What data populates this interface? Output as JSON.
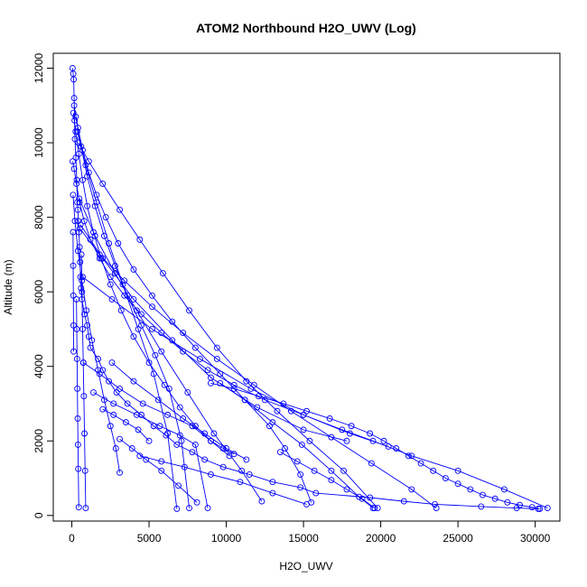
{
  "chart_data": {
    "type": "line",
    "title": "ATOM2 Northbound H2O_UWV (Log)",
    "xlabel": "H2O_UWV",
    "ylabel": "Altitude (m)",
    "xlim": [
      -1200,
      31600
    ],
    "ylim": [
      -150,
      12400
    ],
    "xticks": [
      0,
      5000,
      10000,
      15000,
      20000,
      25000,
      30000
    ],
    "yticks": [
      0,
      2000,
      4000,
      6000,
      8000,
      10000,
      12000
    ],
    "xtick_labels": [
      "0",
      "5000",
      "10000",
      "15000",
      "20000",
      "25000",
      "30000"
    ],
    "ytick_labels": [
      "0",
      "2000",
      "4000",
      "6000",
      "8000",
      "10000",
      "12000"
    ],
    "grid": false,
    "legend": "none",
    "marker": "open-circle",
    "colors": {
      "series": "#0000ff",
      "axis": "#000000"
    },
    "series": [
      {
        "x": [
          50,
          90,
          120,
          150,
          180,
          200,
          260,
          320,
          360,
          390,
          420,
          460,
          500,
          540,
          560,
          600,
          650,
          820,
          1000,
          1100,
          1200,
          1700,
          2000,
          2400,
          2900,
          3600,
          4500,
          5300,
          6100,
          6800,
          7800,
          8600,
          9800,
          11500,
          13000,
          14800,
          15800,
          19300,
          21500,
          23500,
          26500,
          28800,
          30200
        ],
        "y": [
          12000,
          11850,
          11700,
          11200,
          10600,
          10100,
          9600,
          9000,
          8400,
          8200,
          7900,
          7600,
          7200,
          6800,
          6400,
          6100,
          5800,
          5400,
          5100,
          4800,
          4500,
          4200,
          3900,
          3600,
          3300,
          3000,
          2700,
          2400,
          2150,
          1900,
          1700,
          1500,
          1300,
          1100,
          900,
          750,
          600,
          480,
          380,
          300,
          240,
          200,
          180
        ]
      },
      {
        "x": [
          60,
          150,
          300,
          500,
          800,
          1200,
          1800,
          2500,
          3400,
          4500,
          5800,
          7200,
          8800,
          10500,
          12500,
          15000,
          17500,
          19500,
          22000,
          25000,
          28000,
          30800
        ],
        "y": [
          9500,
          9300,
          8900,
          8400,
          7900,
          7400,
          6900,
          6400,
          5900,
          5400,
          4900,
          4400,
          3900,
          3500,
          3100,
          2700,
          2300,
          2000,
          1600,
          1200,
          700,
          200
        ]
      },
      {
        "x": [
          100,
          250,
          450,
          700,
          1000,
          1400,
          1900,
          2500,
          3200,
          4000,
          5000,
          6000,
          7000,
          8000,
          9000,
          9800,
          10500
        ],
        "y": [
          10800,
          10300,
          9700,
          9000,
          8300,
          7600,
          6900,
          6200,
          5500,
          4800,
          4100,
          3500,
          2900,
          2400,
          2000,
          1800,
          1650
        ]
      },
      {
        "x": [
          150,
          400,
          700,
          1100,
          1600,
          2200,
          3000,
          4000,
          5200,
          6500,
          8000,
          9600,
          11200,
          12800,
          13800,
          14800,
          15500
        ],
        "y": [
          11000,
          10400,
          9800,
          9200,
          8600,
          8000,
          7300,
          6600,
          5900,
          5200,
          4500,
          3800,
          3100,
          2400,
          1800,
          1100,
          350
        ]
      },
      {
        "x": [
          250,
          600,
          1000,
          1500,
          2100,
          2800,
          3600,
          4500,
          5400,
          6300,
          7100,
          7600
        ],
        "y": [
          10700,
          9900,
          9100,
          8300,
          7500,
          6700,
          5900,
          5100,
          4300,
          3400,
          2000,
          200
        ]
      },
      {
        "x": [
          350,
          900,
          1600,
          2400,
          3300,
          4300,
          5300,
          6200,
          6800
        ],
        "y": [
          10300,
          9400,
          8400,
          7300,
          6200,
          5000,
          3800,
          2200,
          180
        ]
      },
      {
        "x": [
          420,
          1100,
          2000,
          3100,
          4400,
          5900,
          7600,
          9400,
          11300,
          13300,
          15400,
          17600,
          19800
        ],
        "y": [
          10000,
          9500,
          8900,
          8200,
          7400,
          6500,
          5500,
          4500,
          3600,
          2800,
          2000,
          1200,
          200
        ]
      },
      {
        "x": [
          80,
          200,
          400,
          650,
          950,
          1300,
          1700,
          2100,
          2500,
          2850,
          3100
        ],
        "y": [
          8600,
          7900,
          7100,
          6300,
          5500,
          4700,
          3900,
          3100,
          2400,
          1800,
          1150
        ]
      },
      {
        "x": [
          480,
          1500,
          2800,
          4200,
          5800,
          7500,
          9200,
          11000,
          12300
        ],
        "y": [
          8500,
          7500,
          6500,
          5500,
          4400,
          3300,
          2200,
          1200,
          380
        ]
      },
      {
        "x": [
          520,
          1800,
          3400,
          5200,
          7200,
          9400,
          11800,
          14200,
          16800,
          19400,
          22000,
          23600
        ],
        "y": [
          7700,
          7000,
          6300,
          5600,
          4900,
          4200,
          3500,
          2800,
          2100,
          1400,
          700,
          200
        ]
      },
      {
        "x": [
          300,
          320,
          340,
          360,
          380,
          400,
          420,
          450
        ],
        "y": [
          5800,
          5000,
          4200,
          3400,
          2600,
          1900,
          1250,
          220
        ]
      },
      {
        "x": [
          620,
          660,
          700,
          740,
          780,
          820,
          860,
          900
        ],
        "y": [
          7000,
          6000,
          5000,
          4100,
          3200,
          2200,
          1200,
          200
        ]
      },
      {
        "x": [
          80,
          90,
          100,
          110,
          120
        ],
        "y": [
          7600,
          6700,
          5900,
          5100,
          4400
        ]
      },
      {
        "x": [
          560,
          2000,
          4000,
          6500,
          9000,
          12000,
          15000,
          17800
        ],
        "y": [
          7800,
          6900,
          5800,
          4700,
          3700,
          2900,
          2300,
          2000
        ]
      },
      {
        "x": [
          700,
          2600,
          5200,
          8300,
          11600,
          15000,
          18000,
          20500
        ],
        "y": [
          6400,
          5800,
          5000,
          4200,
          3400,
          2700,
          2200,
          1850
        ]
      },
      {
        "x": [
          750,
          1800,
          3100,
          4600,
          6200,
          7800,
          9000,
          10200
        ],
        "y": [
          4100,
          3800,
          3400,
          3000,
          2700,
          2400,
          2000,
          1600
        ]
      },
      {
        "x": [
          1400,
          2700,
          4200,
          5700,
          7000,
          8000,
          8800
        ],
        "y": [
          3300,
          3000,
          2700,
          2400,
          2150,
          1900,
          200
        ]
      },
      {
        "x": [
          2000,
          2700,
          3500,
          4300,
          5000
        ],
        "y": [
          2850,
          2700,
          2500,
          2300,
          2000
        ]
      },
      {
        "x": [
          3100,
          3900,
          4800,
          5800,
          6900,
          8100
        ],
        "y": [
          2050,
          1800,
          1500,
          1200,
          800,
          350
        ]
      },
      {
        "x": [
          4400,
          5800,
          7300,
          9000,
          10900,
          13000,
          15200
        ],
        "y": [
          1600,
          1450,
          1300,
          1100,
          900,
          600,
          300
        ]
      },
      {
        "x": [
          9000,
          10500,
          12100,
          13700,
          15200,
          16700,
          18100,
          19300,
          20200,
          21000,
          21800,
          22600,
          23400,
          24200,
          25000,
          25800,
          26600,
          27400,
          28200,
          29000,
          29800,
          30300
        ],
        "y": [
          3550,
          3400,
          3200,
          3000,
          2800,
          2600,
          2400,
          2200,
          2000,
          1800,
          1600,
          1400,
          1200,
          1000,
          850,
          700,
          550,
          450,
          350,
          280,
          220,
          180
        ]
      },
      {
        "x": [
          9600,
          11200,
          13000,
          14900,
          16800,
          18600,
          19500
        ],
        "y": [
          3550,
          3100,
          2500,
          1900,
          1200,
          500,
          200
        ]
      },
      {
        "x": [
          13500,
          14600,
          15700,
          16800,
          17800,
          18800,
          19600
        ],
        "y": [
          1700,
          1450,
          1200,
          950,
          700,
          450,
          200
        ]
      },
      {
        "x": [
          2600,
          4000,
          5600,
          7200,
          8600,
          10000,
          11300
        ],
        "y": [
          4100,
          3600,
          3100,
          2600,
          2200,
          1800,
          1500
        ]
      }
    ]
  }
}
